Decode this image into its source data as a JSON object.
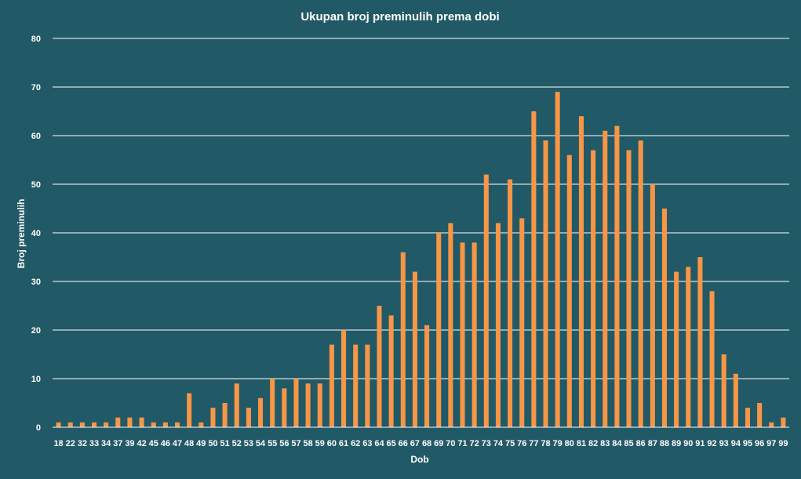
{
  "colors": {
    "background": "#215967",
    "bar": "#f79646",
    "grid": "#ffffff",
    "text": "#ffffff"
  },
  "chart_data": {
    "type": "bar",
    "title": "Ukupan broj preminulih prema dobi",
    "xlabel": "Dob",
    "ylabel": "Broj preminulih",
    "ylim": [
      0,
      80
    ],
    "yticks": [
      0,
      10,
      20,
      30,
      40,
      50,
      60,
      70,
      80
    ],
    "grid": true,
    "legend": "none",
    "categories": [
      "18",
      "22",
      "32",
      "33",
      "34",
      "37",
      "39",
      "42",
      "45",
      "46",
      "47",
      "48",
      "49",
      "50",
      "51",
      "52",
      "53",
      "54",
      "55",
      "56",
      "57",
      "58",
      "59",
      "60",
      "61",
      "62",
      "63",
      "64",
      "65",
      "66",
      "67",
      "68",
      "69",
      "70",
      "71",
      "72",
      "73",
      "74",
      "75",
      "76",
      "77",
      "78",
      "79",
      "80",
      "81",
      "82",
      "83",
      "84",
      "85",
      "86",
      "87",
      "88",
      "89",
      "90",
      "91",
      "92",
      "93",
      "94",
      "95",
      "96",
      "97",
      "99"
    ],
    "values": [
      1,
      1,
      1,
      1,
      1,
      2,
      2,
      2,
      1,
      1,
      1,
      7,
      1,
      4,
      5,
      9,
      4,
      6,
      10,
      8,
      10,
      9,
      9,
      17,
      20,
      17,
      17,
      25,
      23,
      36,
      32,
      21,
      40,
      42,
      38,
      38,
      52,
      42,
      51,
      43,
      65,
      59,
      69,
      56,
      64,
      57,
      61,
      62,
      57,
      59,
      50,
      45,
      32,
      33,
      35,
      28,
      15,
      11,
      4,
      5,
      1,
      2
    ]
  }
}
